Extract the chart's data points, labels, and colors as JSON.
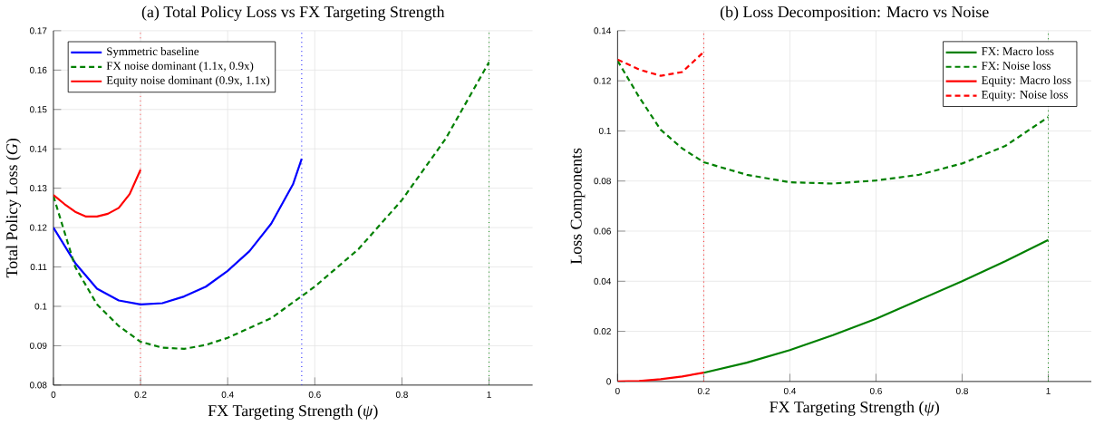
{
  "chart_data": [
    {
      "type": "line",
      "title": "(a) Total Policy Loss vs FX Targeting Strength",
      "xlabel": "FX Targeting Strength (*ψ*)",
      "ylabel": "Total Policy Loss (*G*)",
      "xlim": [
        0,
        1.1
      ],
      "ylim": [
        0.08,
        0.17
      ],
      "xticks": [
        0,
        0.2,
        0.4,
        0.6,
        0.8,
        1
      ],
      "yticks": [
        0.08,
        0.09,
        0.1,
        0.11,
        0.12,
        0.13,
        0.14,
        0.15,
        0.16,
        0.17
      ],
      "grid": true,
      "legend": "top left",
      "series": [
        {
          "name": "Symmetric baseline",
          "color": "#0000ff",
          "line_style": "solid",
          "x": [
            0,
            0.05,
            0.1,
            0.15,
            0.2,
            0.25,
            0.3,
            0.35,
            0.4,
            0.45,
            0.5,
            0.55,
            0.57
          ],
          "values": [
            0.12,
            0.111,
            0.1045,
            0.1015,
            0.1005,
            0.1008,
            0.1025,
            0.105,
            0.109,
            0.114,
            0.121,
            0.131,
            0.1375
          ]
        },
        {
          "name": "FX noise dominant (1.1x, 0.9x)",
          "color": "#008000",
          "line_style": "dashed",
          "x": [
            0,
            0.05,
            0.1,
            0.15,
            0.2,
            0.25,
            0.3,
            0.35,
            0.4,
            0.5,
            0.6,
            0.7,
            0.8,
            0.9,
            1.0
          ],
          "values": [
            0.128,
            0.11,
            0.1005,
            0.095,
            0.091,
            0.0895,
            0.0892,
            0.0902,
            0.092,
            0.097,
            0.105,
            0.1145,
            0.127,
            0.1425,
            0.162
          ]
        },
        {
          "name": "Equity noise dominant (0.9x, 1.1x)",
          "color": "#ff0000",
          "line_style": "solid",
          "x": [
            0,
            0.025,
            0.05,
            0.075,
            0.1,
            0.125,
            0.15,
            0.175,
            0.2
          ],
          "values": [
            0.1283,
            0.126,
            0.124,
            0.1228,
            0.1228,
            0.1235,
            0.125,
            0.1285,
            0.1347
          ]
        }
      ],
      "ref_lines": [
        {
          "axis": "x",
          "value": 0.2,
          "color": "#ff0000",
          "line_style": "dotted"
        },
        {
          "axis": "x",
          "value": 0.57,
          "color": "#0000ff",
          "line_style": "dotted"
        },
        {
          "axis": "x",
          "value": 1,
          "color": "#008000",
          "line_style": "dotted"
        }
      ]
    },
    {
      "type": "line",
      "title": "(b) Loss Decomposition: Macro vs Noise",
      "xlabel": "FX Targeting Strength (*ψ*)",
      "ylabel": "Loss Components",
      "xlim": [
        0,
        1.1
      ],
      "ylim": [
        0,
        0.14
      ],
      "xticks": [
        0,
        0.2,
        0.4,
        0.6,
        0.8,
        1
      ],
      "yticks": [
        0,
        0.02,
        0.04,
        0.06,
        0.08,
        0.1,
        0.12,
        0.14
      ],
      "grid": true,
      "legend": "top right",
      "series": [
        {
          "name": "FX: Macro loss",
          "color": "#008000",
          "line_style": "solid",
          "x": [
            0.2,
            0.3,
            0.4,
            0.5,
            0.6,
            0.7,
            0.8,
            0.9,
            1.0
          ],
          "values": [
            0.0035,
            0.0075,
            0.0125,
            0.0185,
            0.025,
            0.0325,
            0.04,
            0.048,
            0.0565
          ]
        },
        {
          "name": "FX: Noise loss",
          "color": "#008000",
          "line_style": "dashed",
          "x": [
            0,
            0.05,
            0.1,
            0.15,
            0.2,
            0.3,
            0.4,
            0.5,
            0.6,
            0.7,
            0.8,
            0.9,
            1.0
          ],
          "values": [
            0.128,
            0.1135,
            0.1005,
            0.093,
            0.0875,
            0.0825,
            0.0795,
            0.079,
            0.0802,
            0.0825,
            0.087,
            0.094,
            0.1055
          ]
        },
        {
          "name": "Equity: Macro loss",
          "color": "#ff0000",
          "line_style": "solid",
          "x": [
            0,
            0.05,
            0.1,
            0.15,
            0.2
          ],
          "values": [
            0,
            0.0002,
            0.0009,
            0.002,
            0.0035
          ]
        },
        {
          "name": "Equity: Noise loss",
          "color": "#ff0000",
          "line_style": "dashed",
          "x": [
            0,
            0.05,
            0.1,
            0.15,
            0.2
          ],
          "values": [
            0.1285,
            0.1245,
            0.122,
            0.1235,
            0.1315
          ]
        }
      ],
      "ref_lines": [
        {
          "axis": "x",
          "value": 0.2,
          "color": "#ff0000",
          "line_style": "dotted"
        },
        {
          "axis": "x",
          "value": 1,
          "color": "#008000",
          "line_style": "dotted"
        }
      ]
    }
  ]
}
